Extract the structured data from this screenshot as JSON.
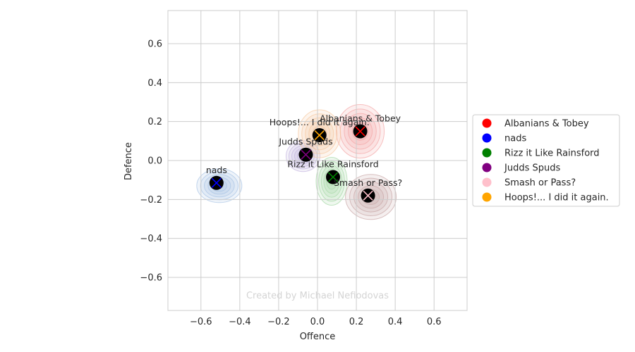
{
  "chart_data": {
    "type": "scatter",
    "xlabel": "Offence",
    "ylabel": "Defence",
    "xlim": [
      -0.77,
      0.77
    ],
    "ylim": [
      -0.77,
      0.77
    ],
    "xticks": [
      -0.6,
      -0.4,
      -0.2,
      0.0,
      0.2,
      0.4,
      0.6
    ],
    "yticks": [
      -0.6,
      -0.4,
      -0.2,
      0.0,
      0.2,
      0.4,
      0.6
    ],
    "xtick_labels": [
      "−0.6",
      "−0.4",
      "−0.2",
      "0.0",
      "0.2",
      "0.4",
      "0.6"
    ],
    "ytick_labels": [
      "−0.6",
      "−0.4",
      "−0.2",
      "0.0",
      "0.2",
      "0.4",
      "0.6"
    ],
    "grid": true,
    "legend_position": "right",
    "watermark": "Created by Michael Nefiodovas",
    "series": [
      {
        "name": "Albanians & Tobey",
        "x": 0.22,
        "y": 0.15,
        "color": "#ff0000",
        "cloud": "#f4a6a6"
      },
      {
        "name": "nads",
        "x": -0.52,
        "y": -0.115,
        "color": "#0000ff",
        "cloud": "#a9c4e6"
      },
      {
        "name": "Rizz it Like Rainsford",
        "x": 0.08,
        "y": -0.085,
        "color": "#008000",
        "cloud": "#a8d8a8"
      },
      {
        "name": "Judds Spuds",
        "x": -0.06,
        "y": 0.03,
        "color": "#800080",
        "cloud": "#c4b5e0"
      },
      {
        "name": "Smash or Pass?",
        "x": 0.26,
        "y": -0.18,
        "color": "#ffc0cb",
        "cloud": "#c9a6a6"
      },
      {
        "name": "Hoops!... I did it again.",
        "x": 0.01,
        "y": 0.13,
        "color": "#ffa500",
        "cloud": "#f6c9a0"
      }
    ]
  }
}
